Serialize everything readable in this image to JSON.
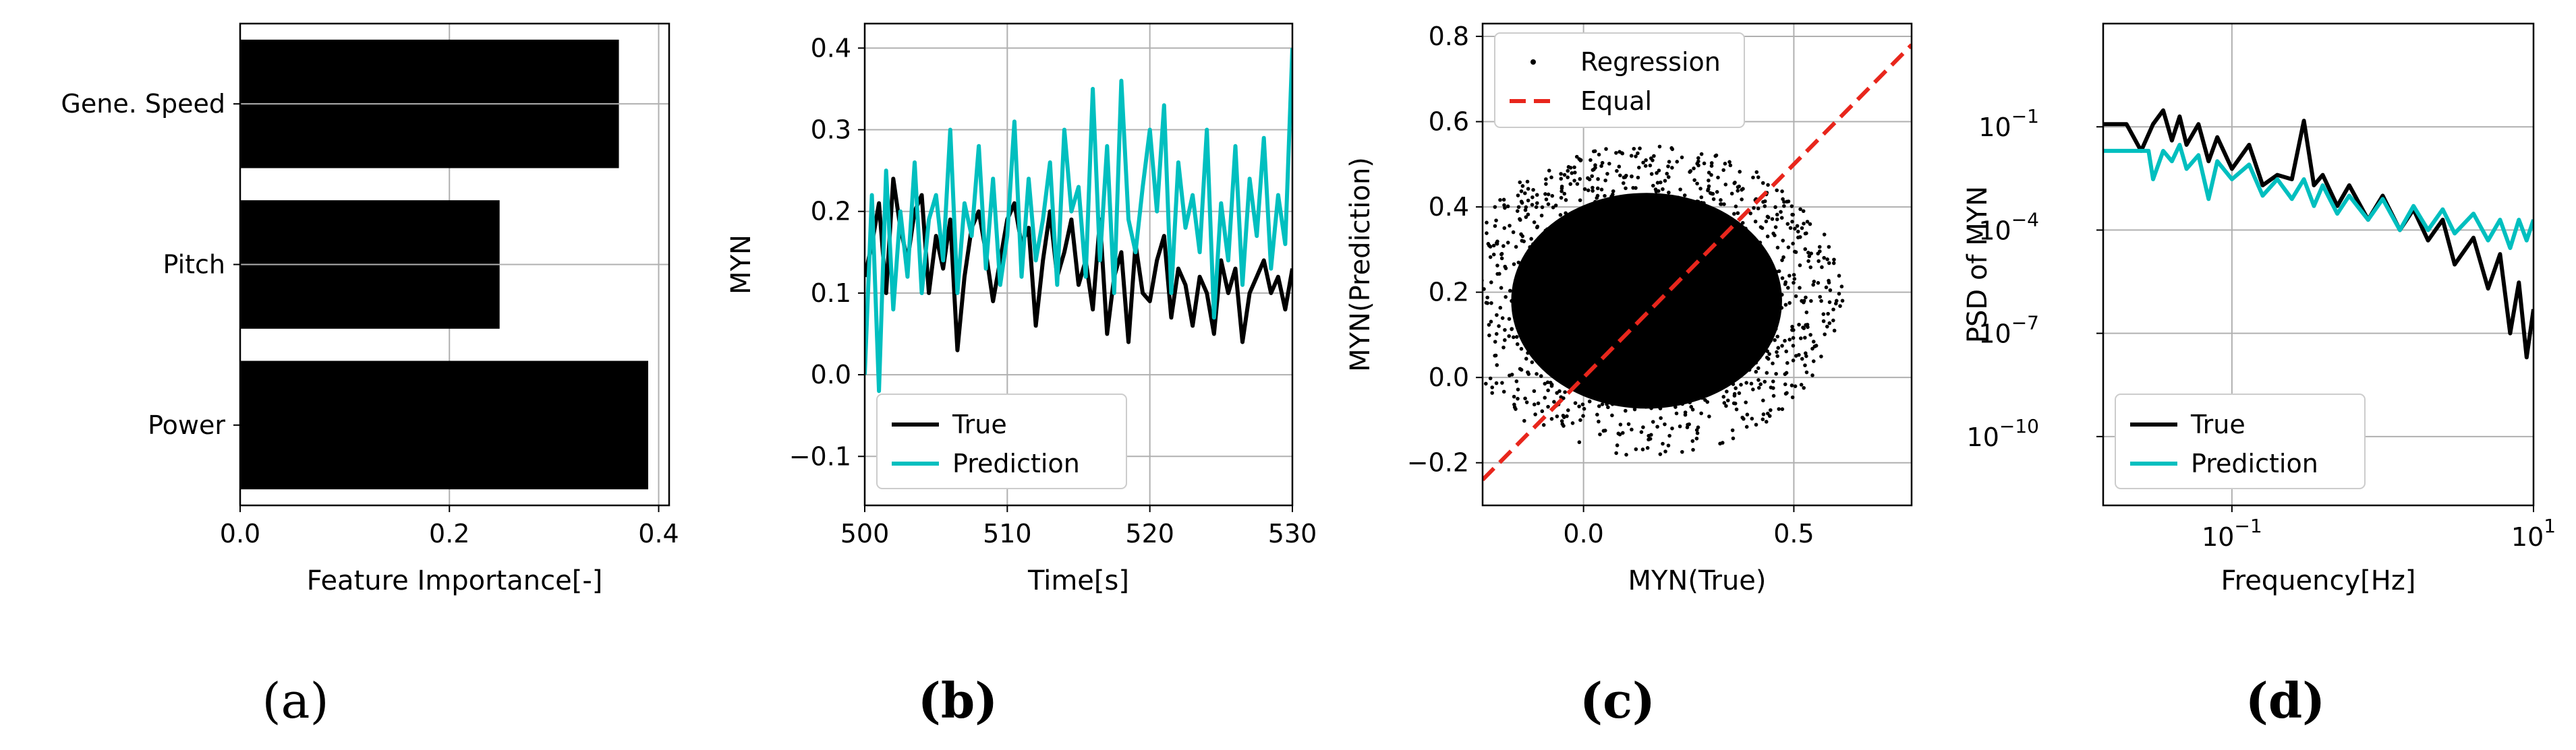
{
  "colors": {
    "true": "#000000",
    "prediction": "#00BFBF",
    "equal": "#E8261C",
    "grid": "#b0b0b0"
  },
  "chart_data": [
    {
      "id": "a",
      "panel_label": "(a)",
      "type": "bar",
      "orientation": "horizontal",
      "categories": [
        "Gene. Speed",
        "Pitch",
        "Power"
      ],
      "values": [
        0.362,
        0.248,
        0.39
      ],
      "xlabel": "Feature Importance[-]",
      "ylabel": "",
      "xlim": [
        0,
        0.41
      ],
      "xticks": [
        "0.0",
        "0.2",
        "0.4"
      ],
      "grid": true
    },
    {
      "id": "b",
      "panel_label": "(b)",
      "type": "line",
      "xlabel": "Time[s]",
      "ylabel": "MYN",
      "xlim": [
        500,
        530
      ],
      "ylim": [
        -0.16,
        0.43
      ],
      "xticks": [
        "500",
        "510",
        "520",
        "530"
      ],
      "yticks": [
        "−0.1",
        "0.0",
        "0.1",
        "0.2",
        "0.3",
        "0.4"
      ],
      "grid": true,
      "legend": "lower-left",
      "series": [
        {
          "name": "True",
          "x": [
            500,
            500.5,
            501,
            501.5,
            502,
            502.5,
            503,
            503.5,
            504,
            504.5,
            505,
            505.5,
            506,
            506.5,
            507,
            507.5,
            508,
            508.5,
            509,
            509.5,
            510,
            510.5,
            511,
            511.5,
            512,
            512.5,
            513,
            513.5,
            514,
            514.5,
            515,
            515.5,
            516,
            516.5,
            517,
            517.5,
            518,
            518.5,
            519,
            519.5,
            520,
            520.5,
            521,
            521.5,
            522,
            522.5,
            523,
            523.5,
            524,
            524.5,
            525,
            525.5,
            526,
            526.5,
            527,
            527.5,
            528,
            528.5,
            529,
            529.5,
            530
          ],
          "y": [
            0.12,
            0.16,
            0.21,
            0.1,
            0.24,
            0.18,
            0.14,
            0.2,
            0.22,
            0.1,
            0.17,
            0.13,
            0.19,
            0.03,
            0.12,
            0.18,
            0.2,
            0.15,
            0.09,
            0.14,
            0.19,
            0.21,
            0.16,
            0.18,
            0.06,
            0.14,
            0.2,
            0.12,
            0.15,
            0.19,
            0.11,
            0.14,
            0.08,
            0.19,
            0.05,
            0.12,
            0.15,
            0.04,
            0.16,
            0.1,
            0.09,
            0.14,
            0.17,
            0.07,
            0.13,
            0.11,
            0.06,
            0.12,
            0.1,
            0.05,
            0.14,
            0.1,
            0.13,
            0.04,
            0.1,
            0.12,
            0.14,
            0.1,
            0.12,
            0.08,
            0.13
          ]
        },
        {
          "name": "Prediction",
          "x": [
            500,
            500.5,
            501,
            501.5,
            502,
            502.5,
            503,
            503.5,
            504,
            504.5,
            505,
            505.5,
            506,
            506.5,
            507,
            507.5,
            508,
            508.5,
            509,
            509.5,
            510,
            510.5,
            511,
            511.5,
            512,
            512.5,
            513,
            513.5,
            514,
            514.5,
            515,
            515.5,
            516,
            516.5,
            517,
            517.5,
            518,
            518.5,
            519,
            519.5,
            520,
            520.5,
            521,
            521.5,
            522,
            522.5,
            523,
            523.5,
            524,
            524.5,
            525,
            525.5,
            526,
            526.5,
            527,
            527.5,
            528,
            528.5,
            529,
            529.5,
            530
          ],
          "y": [
            0.0,
            0.22,
            -0.02,
            0.25,
            0.08,
            0.2,
            0.12,
            0.26,
            0.1,
            0.19,
            0.22,
            0.14,
            0.3,
            0.1,
            0.21,
            0.17,
            0.28,
            0.13,
            0.24,
            0.11,
            0.17,
            0.31,
            0.12,
            0.24,
            0.14,
            0.19,
            0.26,
            0.11,
            0.3,
            0.2,
            0.23,
            0.12,
            0.35,
            0.14,
            0.28,
            0.1,
            0.36,
            0.19,
            0.15,
            0.23,
            0.3,
            0.2,
            0.33,
            0.1,
            0.26,
            0.18,
            0.22,
            0.15,
            0.3,
            0.07,
            0.21,
            0.14,
            0.28,
            0.11,
            0.24,
            0.17,
            0.29,
            0.13,
            0.22,
            0.16,
            0.4
          ]
        }
      ]
    },
    {
      "id": "c",
      "panel_label": "(c)",
      "type": "scatter",
      "xlabel": "MYN(True)",
      "ylabel": "MYN(Prediction)",
      "xlim": [
        -0.24,
        0.78
      ],
      "ylim": [
        -0.3,
        0.83
      ],
      "xticks": [
        "0.0",
        "0.5"
      ],
      "yticks": [
        "−0.2",
        "0.0",
        "0.2",
        "0.4",
        "0.6",
        "0.8"
      ],
      "grid": true,
      "legend": "top-left",
      "series": [
        {
          "name": "Regression",
          "cluster_center": [
            0.15,
            0.18
          ],
          "cluster_spread": [
            0.14,
            0.11
          ]
        },
        {
          "name": "Equal",
          "x": [
            -0.24,
            0.78
          ],
          "y": [
            -0.24,
            0.78
          ]
        }
      ]
    },
    {
      "id": "d",
      "panel_label": "(d)",
      "type": "line",
      "xlabel": "Frequency[Hz]",
      "ylabel": "PSD of MYN",
      "xscale": "log",
      "yscale": "log",
      "xlim": [
        0.014,
        10
      ],
      "ylim": [
        1e-12,
        100
      ],
      "xtick_values": [
        0.1,
        10
      ],
      "xticks": [
        "10",
        "10"
      ],
      "xtick_exponents": [
        "−1",
        "1"
      ],
      "ytick_values": [
        0.1,
        0.0001,
        1e-07,
        1e-10
      ],
      "yticks": [
        "10",
        "10",
        "10",
        "10"
      ],
      "ytick_exponents": [
        "−1",
        "−4",
        "−7",
        "−10"
      ],
      "grid": true,
      "legend": "lower-left",
      "series": [
        {
          "name": "True",
          "x": [
            0.014,
            0.02,
            0.025,
            0.03,
            0.035,
            0.04,
            0.045,
            0.05,
            0.06,
            0.07,
            0.08,
            0.1,
            0.13,
            0.16,
            0.2,
            0.25,
            0.3,
            0.35,
            0.4,
            0.5,
            0.6,
            0.8,
            1,
            1.3,
            1.6,
            2,
            2.5,
            3,
            4,
            5,
            6,
            7,
            8,
            9,
            10
          ],
          "y": [
            0.12,
            0.12,
            0.02,
            0.12,
            0.3,
            0.04,
            0.2,
            0.03,
            0.12,
            0.01,
            0.05,
            0.006,
            0.03,
            0.002,
            0.004,
            0.003,
            0.15,
            0.002,
            0.004,
            0.0005,
            0.002,
            0.0002,
            0.001,
            0.0001,
            0.0004,
            5e-05,
            0.0002,
            1e-05,
            6e-05,
            2e-06,
            2e-05,
            1e-07,
            3e-06,
            2e-08,
            5e-07
          ]
        },
        {
          "name": "Prediction",
          "x": [
            0.014,
            0.02,
            0.025,
            0.028,
            0.03,
            0.035,
            0.04,
            0.045,
            0.05,
            0.06,
            0.07,
            0.08,
            0.1,
            0.13,
            0.16,
            0.2,
            0.25,
            0.3,
            0.35,
            0.4,
            0.5,
            0.6,
            0.8,
            1,
            1.3,
            1.6,
            2,
            2.5,
            3,
            4,
            5,
            6,
            7,
            8,
            9,
            10
          ],
          "y": [
            0.02,
            0.02,
            0.02,
            0.02,
            0.003,
            0.02,
            0.01,
            0.03,
            0.006,
            0.015,
            0.0008,
            0.01,
            0.003,
            0.008,
            0.001,
            0.003,
            0.0008,
            0.003,
            0.0005,
            0.002,
            0.0003,
            0.001,
            0.0002,
            0.0008,
            0.0001,
            0.0005,
            0.0001,
            0.0004,
            8e-05,
            0.0003,
            5e-05,
            0.0002,
            3e-05,
            0.0002,
            5e-05,
            0.0002
          ]
        }
      ]
    }
  ]
}
